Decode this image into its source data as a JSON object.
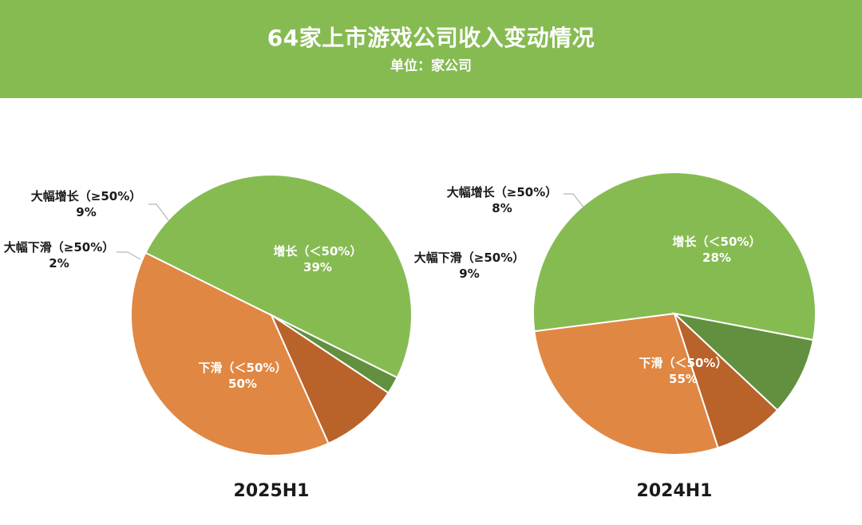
{
  "header": {
    "title": "64家上市游戏公司收入变动情况",
    "subtitle": "单位：家公司"
  },
  "colors": {
    "header_bg": "#86bb52",
    "decline_small": "#86bb52",
    "growth_small": "#e08743",
    "growth_large": "#b9622a",
    "decline_large": "#62903f"
  },
  "chart_data": [
    {
      "type": "pie",
      "title": "2025H1",
      "slices": [
        {
          "label": "增长（＜50%）",
          "value": 39,
          "pct": "39%",
          "color": "#e08743"
        },
        {
          "label": "下滑（＜50%）",
          "value": 50,
          "pct": "50%",
          "color": "#86bb52"
        },
        {
          "label": "大幅下滑（≥50%）",
          "value": 2,
          "pct": "2%",
          "color": "#62903f"
        },
        {
          "label": "大幅增长（≥50%）",
          "value": 9,
          "pct": "9%",
          "color": "#b9622a"
        }
      ]
    },
    {
      "type": "pie",
      "title": "2024H1",
      "slices": [
        {
          "label": "增长（＜50%）",
          "value": 28,
          "pct": "28%",
          "color": "#e08743"
        },
        {
          "label": "下滑（＜50%）",
          "value": 55,
          "pct": "55%",
          "color": "#86bb52"
        },
        {
          "label": "大幅下滑（≥50%）",
          "value": 9,
          "pct": "9%",
          "color": "#62903f"
        },
        {
          "label": "大幅增长（≥50%）",
          "value": 8,
          "pct": "8%",
          "color": "#b9622a"
        }
      ]
    }
  ]
}
